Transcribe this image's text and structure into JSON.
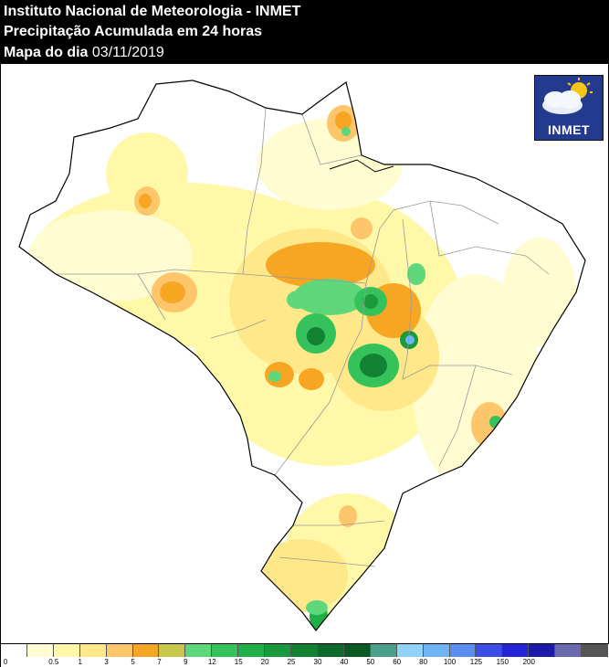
{
  "header": {
    "line1": "Instituto Nacional de Meteorologia - INMET",
    "line2": "Precipitação Acumulada em 24 horas",
    "line3_label": "Mapa do dia",
    "line3_date": "03/11/2019"
  },
  "logo": {
    "text": "INMET",
    "icon": "sun-cloud-icon"
  },
  "legend": {
    "colors": [
      "#ffffff",
      "#fefcd0",
      "#fef8a8",
      "#fee88a",
      "#fdc66a",
      "#f6a623",
      "#c8c84a",
      "#5ed67a",
      "#35c25b",
      "#20b047",
      "#1a9a3c",
      "#128232",
      "#0e6a2a",
      "#0b5a24",
      "#4aa08a",
      "#8fd4f6",
      "#6fb4f4",
      "#5a8ef0",
      "#3b4ee8",
      "#2424d6",
      "#1c1aa8",
      "#6a6ab0",
      "#555555"
    ],
    "labels": [
      "0",
      "0.5",
      "1",
      "3",
      "5",
      "7",
      "9",
      "12",
      "15",
      "20",
      "25",
      "30",
      "40",
      "50",
      "60",
      "80",
      "100",
      "125",
      "150",
      "200"
    ]
  }
}
